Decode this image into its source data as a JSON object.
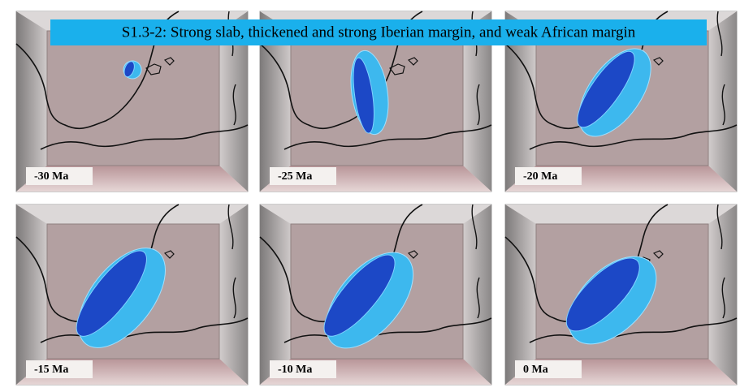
{
  "title": "S1.3-2: Strong slab, thickened and strong Iberian margin, and weak African margin",
  "panels": [
    {
      "label": "-30 Ma"
    },
    {
      "label": "-25 Ma"
    },
    {
      "label": "-20 Ma"
    },
    {
      "label": "-15 Ma"
    },
    {
      "label": "-10 Ma"
    },
    {
      "label": "0 Ma"
    }
  ]
}
